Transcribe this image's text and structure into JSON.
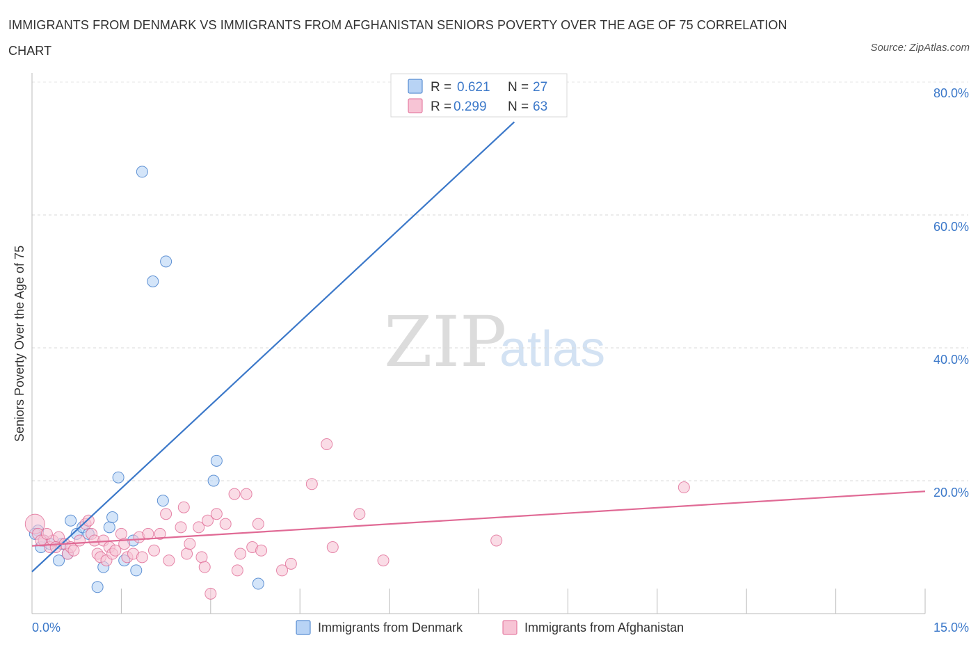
{
  "title": "IMMIGRANTS FROM DENMARK VS IMMIGRANTS FROM AFGHANISTAN SENIORS POVERTY OVER THE AGE OF 75 CORRELATION CHART",
  "source": "Source: ZipAtlas.com",
  "watermark": {
    "zip": "ZIP",
    "atlas": "atlas"
  },
  "colors": {
    "denmark": "#3b78c9",
    "denmark_fill": "#b8d3f5",
    "afghanistan": "#e06a95",
    "afghanistan_fill": "#f7c4d5",
    "tick_text": "#3b78c9"
  },
  "legend": {
    "r_label": "R =",
    "n_label": "N =",
    "denmark": {
      "r": "0.621",
      "n": "27"
    },
    "afghanistan": {
      "r": "0.299",
      "n": "63"
    }
  },
  "bottom_legend": {
    "denmark": "Immigrants from Denmark",
    "afghanistan": "Immigrants from Afghanistan"
  },
  "chart_data": {
    "type": "scatter",
    "title": "IMMIGRANTS FROM DENMARK VS IMMIGRANTS FROM AFGHANISTAN SENIORS POVERTY OVER THE AGE OF 75 CORRELATION CHART",
    "xlabel": "",
    "ylabel": "Seniors Poverty Over the Age of 75",
    "xlim": [
      0,
      15
    ],
    "ylim": [
      0,
      80
    ],
    "x_tick_labels": [
      "0.0%",
      "15.0%"
    ],
    "y_ticks": [
      20,
      40,
      60,
      80
    ],
    "y_tick_labels": [
      "20.0%",
      "40.0%",
      "60.0%",
      "80.0%"
    ],
    "series": [
      {
        "name": "Immigrants from Denmark",
        "points": [
          [
            0.1,
            12.5
          ],
          [
            0.15,
            10
          ],
          [
            0.2,
            11
          ],
          [
            0.3,
            10.5
          ],
          [
            0.45,
            8
          ],
          [
            0.6,
            9
          ],
          [
            0.65,
            14
          ],
          [
            0.75,
            12
          ],
          [
            0.85,
            13
          ],
          [
            0.95,
            12
          ],
          [
            1.1,
            4
          ],
          [
            1.2,
            7
          ],
          [
            1.3,
            13
          ],
          [
            1.35,
            14.5
          ],
          [
            1.45,
            20.5
          ],
          [
            1.55,
            8
          ],
          [
            1.7,
            11
          ],
          [
            1.75,
            6.5
          ],
          [
            1.85,
            66.5
          ],
          [
            2.03,
            50
          ],
          [
            2.2,
            17
          ],
          [
            2.25,
            53
          ],
          [
            3.05,
            20
          ],
          [
            3.1,
            23
          ],
          [
            3.8,
            4.5
          ],
          [
            0.05,
            12
          ],
          [
            0.5,
            10.5
          ]
        ],
        "trend": {
          "x0": 0,
          "y0": 6.3,
          "x1": 8.1,
          "y1": 74
        }
      },
      {
        "name": "Immigrants from Afghanistan",
        "points": [
          [
            0.05,
            13.5
          ],
          [
            0.1,
            12
          ],
          [
            0.2,
            11
          ],
          [
            0.3,
            10
          ],
          [
            0.35,
            11
          ],
          [
            0.45,
            11.5
          ],
          [
            0.55,
            10.5
          ],
          [
            0.6,
            9
          ],
          [
            0.65,
            10
          ],
          [
            0.7,
            9.5
          ],
          [
            0.8,
            11
          ],
          [
            0.9,
            13.5
          ],
          [
            0.95,
            14
          ],
          [
            1.0,
            12
          ],
          [
            1.05,
            11
          ],
          [
            1.1,
            9
          ],
          [
            1.15,
            8.5
          ],
          [
            1.2,
            11
          ],
          [
            1.25,
            8
          ],
          [
            1.3,
            10
          ],
          [
            1.35,
            9
          ],
          [
            1.4,
            9.5
          ],
          [
            1.5,
            12
          ],
          [
            1.55,
            10.5
          ],
          [
            1.6,
            8.5
          ],
          [
            1.7,
            9
          ],
          [
            1.8,
            11.5
          ],
          [
            1.85,
            8.5
          ],
          [
            1.95,
            12
          ],
          [
            2.05,
            9.5
          ],
          [
            2.15,
            12
          ],
          [
            2.25,
            15
          ],
          [
            2.3,
            8
          ],
          [
            2.5,
            13
          ],
          [
            2.55,
            16
          ],
          [
            2.6,
            9
          ],
          [
            2.65,
            10.5
          ],
          [
            2.8,
            13
          ],
          [
            2.85,
            8.5
          ],
          [
            2.9,
            7
          ],
          [
            2.95,
            14
          ],
          [
            3.0,
            3
          ],
          [
            3.1,
            15
          ],
          [
            3.25,
            13.5
          ],
          [
            3.4,
            18
          ],
          [
            3.45,
            6.5
          ],
          [
            3.5,
            9
          ],
          [
            3.6,
            18
          ],
          [
            3.7,
            10
          ],
          [
            3.8,
            13.5
          ],
          [
            3.85,
            9.5
          ],
          [
            4.2,
            6.5
          ],
          [
            4.35,
            7.5
          ],
          [
            4.7,
            19.5
          ],
          [
            4.95,
            25.5
          ],
          [
            5.05,
            10
          ],
          [
            5.5,
            15
          ],
          [
            5.9,
            8
          ],
          [
            7.8,
            11
          ],
          [
            10.95,
            19
          ],
          [
            0.15,
            11
          ],
          [
            0.4,
            10
          ],
          [
            0.25,
            12
          ]
        ],
        "trend": {
          "x0": 0,
          "y0": 10.2,
          "x1": 15,
          "y1": 18.4
        }
      }
    ]
  }
}
